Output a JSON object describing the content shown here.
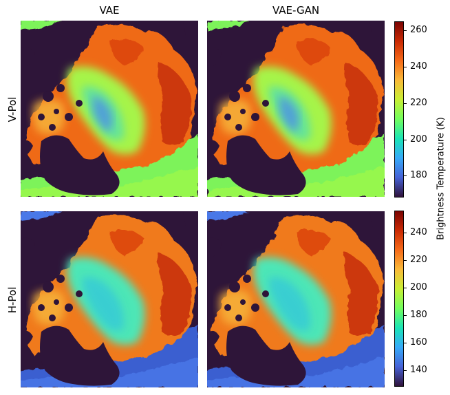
{
  "figure": {
    "columns": [
      "VAE",
      "VAE-GAN"
    ],
    "rows": [
      "V-Pol",
      "H-Pol"
    ],
    "colorbar_label": "Brightness Temperature (K)"
  },
  "chart_data": {
    "type": "heatmap",
    "panels": [
      {
        "row": "V-Pol",
        "col": "VAE"
      },
      {
        "row": "V-Pol",
        "col": "VAE-GAN"
      },
      {
        "row": "H-Pol",
        "col": "VAE"
      },
      {
        "row": "H-Pol",
        "col": "VAE-GAN"
      }
    ],
    "colorbars": [
      {
        "row": "V-Pol",
        "range": [
          168,
          265
        ],
        "ticks": [
          180,
          200,
          220,
          240,
          260
        ],
        "colormap": "turbo"
      },
      {
        "row": "H-Pol",
        "range": [
          128,
          256
        ],
        "ticks": [
          140,
          160,
          180,
          200,
          220,
          240
        ],
        "colormap": "turbo"
      }
    ],
    "colorbar_label": "Brightness Temperature (K)"
  },
  "colors": {
    "land": "#2e1539",
    "turbo_stops": [
      "#30123b",
      "#4662d7",
      "#36aaf9",
      "#1ae4b6",
      "#72fe5e",
      "#c8ef34",
      "#faba39",
      "#f66b19",
      "#ca2a04",
      "#7a0403"
    ]
  }
}
